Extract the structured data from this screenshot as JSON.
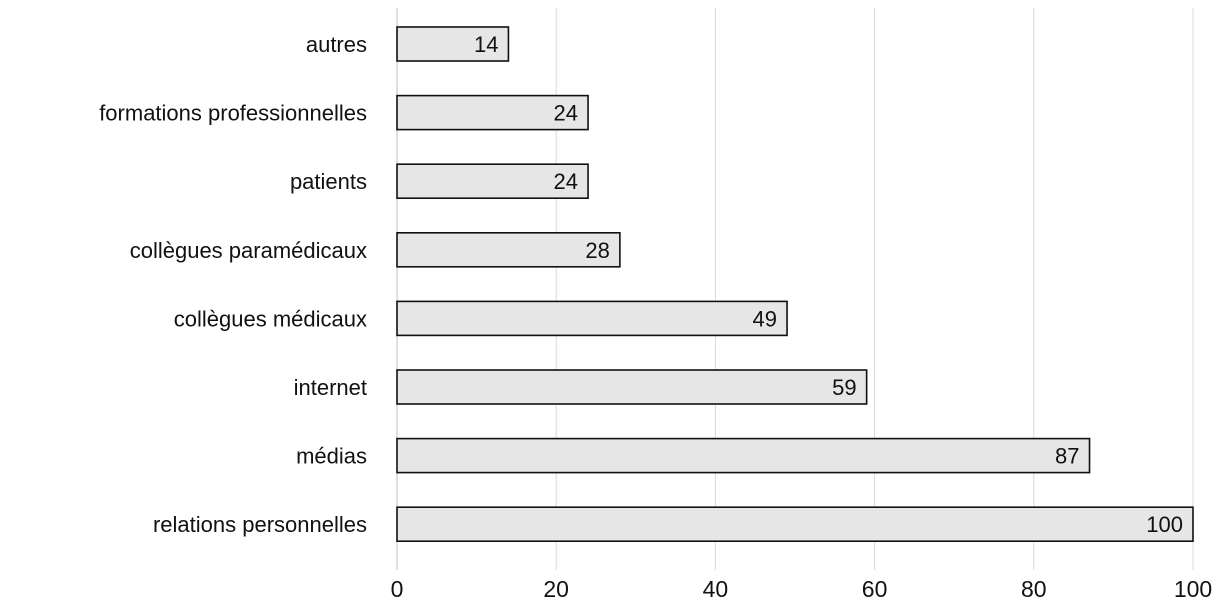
{
  "colors": {
    "bar_fill": "#e6e6e6",
    "bar_stroke": "#111111",
    "grid": "#d9d9d9",
    "text": "#111111"
  },
  "chart_data": {
    "type": "bar",
    "orientation": "horizontal",
    "title": "",
    "xlabel": "",
    "ylabel": "",
    "categories": [
      "autres",
      "formations professionnelles",
      "patients",
      "collègues paramédicaux",
      "collègues médicaux",
      "internet",
      "médias",
      "relations personnelles"
    ],
    "values": [
      14,
      24,
      24,
      28,
      49,
      59,
      87,
      100
    ],
    "xlim": [
      0,
      100
    ],
    "x_ticks": [
      0,
      20,
      40,
      60,
      80,
      100
    ],
    "grid": true,
    "legend": "none"
  }
}
